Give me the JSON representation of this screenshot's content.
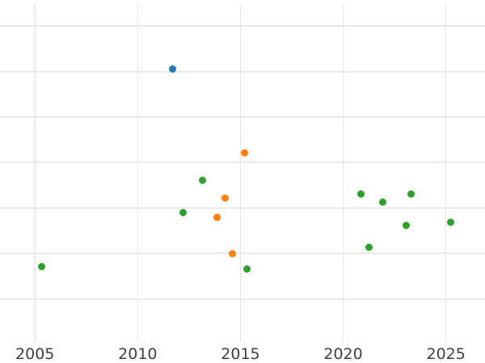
{
  "figure": {
    "background_color": "#ffffff",
    "grid_color": "#e9e9e9",
    "tick_label_color": "#3f3f3f",
    "title": "",
    "legend_visible": false,
    "y_axis_labels_visible": false
  },
  "chart_data": {
    "type": "scatter",
    "title": "",
    "xlabel": "",
    "ylabel": "",
    "x_tick_labels": [
      "2005",
      "2010",
      "2015",
      "2020",
      "2025"
    ],
    "x_tick_values": [
      2005,
      2010,
      2015,
      2020,
      2025
    ],
    "xlim": [
      2003.3,
      2026.9
    ],
    "ylim": [
      0.04,
      7.57
    ],
    "y_gridline_values": [
      1,
      2,
      3,
      4,
      5,
      6,
      7
    ],
    "y_unit_note": "y-axis tick labels are cropped out of view; values are in gridline units counted up from the implied bottom gridline",
    "grid": true,
    "legend_position": "none",
    "marker_diameter_px": 9,
    "series": [
      {
        "name": "series-blue",
        "color": "#1f77b4",
        "points": [
          {
            "x": 2011.71,
            "y": 6.06
          }
        ]
      },
      {
        "name": "series-orange",
        "color": "#ff7f0e",
        "points": [
          {
            "x": 2015.18,
            "y": 4.22
          },
          {
            "x": 2014.26,
            "y": 3.22
          },
          {
            "x": 2013.85,
            "y": 2.79
          },
          {
            "x": 2014.6,
            "y": 2.0
          }
        ]
      },
      {
        "name": "series-green",
        "color": "#2ca02c",
        "points": [
          {
            "x": 2005.31,
            "y": 1.71
          },
          {
            "x": 2012.19,
            "y": 2.9
          },
          {
            "x": 2013.17,
            "y": 3.61
          },
          {
            "x": 2015.31,
            "y": 1.66
          },
          {
            "x": 2020.86,
            "y": 3.31
          },
          {
            "x": 2021.26,
            "y": 2.14
          },
          {
            "x": 2021.94,
            "y": 3.14
          },
          {
            "x": 2023.08,
            "y": 2.62
          },
          {
            "x": 2023.29,
            "y": 3.31
          },
          {
            "x": 2025.21,
            "y": 2.68
          }
        ]
      }
    ]
  }
}
